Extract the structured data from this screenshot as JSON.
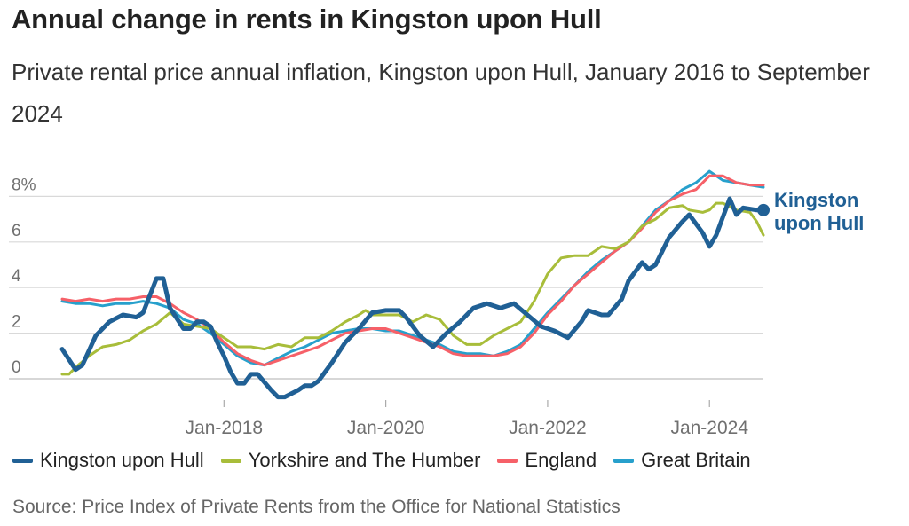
{
  "title": "Annual change in rents in Kingston upon Hull",
  "subtitle": "Private rental price annual inflation, Kingston upon Hull, January 2016 to September 2024",
  "source": "Source: Price Index of Private Rents from the Office for National Statistics",
  "colors": {
    "kingston": "#206095",
    "yorkshire": "#a8bd3a",
    "england": "#f66068",
    "gb": "#27a0cc",
    "grid": "#d9d9d9",
    "axis_text": "#707070"
  },
  "legend": [
    {
      "name": "Kingston upon Hull",
      "color": "#206095"
    },
    {
      "name": "Yorkshire and The Humber",
      "color": "#a8bd3a"
    },
    {
      "name": "England",
      "color": "#f66068"
    },
    {
      "name": "Great Britain",
      "color": "#27a0cc"
    }
  ],
  "chart_data": {
    "type": "line",
    "title": "Annual change in rents in Kingston upon Hull",
    "subtitle": "Private rental price annual inflation, Kingston upon Hull, January 2016 to September 2024",
    "xlabel": "",
    "ylabel": "",
    "x_range": [
      "2016-01",
      "2024-09"
    ],
    "ylim": [
      -1.5,
      9
    ],
    "y_ticks": [
      0,
      2,
      4,
      6,
      8
    ],
    "y_tick_labels": [
      "0",
      "2",
      "4",
      "6",
      "8%"
    ],
    "x_ticks": [
      "2018-01",
      "2020-01",
      "2022-01",
      "2024-01"
    ],
    "x_tick_labels": [
      "Jan-2018",
      "Jan-2020",
      "Jan-2022",
      "Jan-2024"
    ],
    "grid": "horizontal",
    "end_label": "Kingston upon Hull",
    "series": [
      {
        "name": "Kingston upon Hull",
        "color": "#206095",
        "width": 5,
        "points": [
          [
            "2016-01",
            1.3
          ],
          [
            "2016-03",
            0.4
          ],
          [
            "2016-04",
            0.6
          ],
          [
            "2016-06",
            1.9
          ],
          [
            "2016-08",
            2.5
          ],
          [
            "2016-10",
            2.8
          ],
          [
            "2016-12",
            2.7
          ],
          [
            "2017-01",
            2.9
          ],
          [
            "2017-03",
            4.4
          ],
          [
            "2017-04",
            4.4
          ],
          [
            "2017-05",
            3.1
          ],
          [
            "2017-07",
            2.2
          ],
          [
            "2017-08",
            2.2
          ],
          [
            "2017-09",
            2.5
          ],
          [
            "2017-10",
            2.5
          ],
          [
            "2017-11",
            2.3
          ],
          [
            "2017-12",
            1.6
          ],
          [
            "2018-01",
            1.0
          ],
          [
            "2018-02",
            0.3
          ],
          [
            "2018-03",
            -0.2
          ],
          [
            "2018-04",
            -0.2
          ],
          [
            "2018-05",
            0.2
          ],
          [
            "2018-06",
            0.2
          ],
          [
            "2018-08",
            -0.5
          ],
          [
            "2018-09",
            -0.8
          ],
          [
            "2018-10",
            -0.8
          ],
          [
            "2018-12",
            -0.5
          ],
          [
            "2019-01",
            -0.3
          ],
          [
            "2019-02",
            -0.3
          ],
          [
            "2019-03",
            -0.1
          ],
          [
            "2019-05",
            0.7
          ],
          [
            "2019-07",
            1.6
          ],
          [
            "2019-09",
            2.2
          ],
          [
            "2019-11",
            2.9
          ],
          [
            "2020-01",
            3.0
          ],
          [
            "2020-03",
            3.0
          ],
          [
            "2020-04",
            2.7
          ],
          [
            "2020-06",
            1.9
          ],
          [
            "2020-08",
            1.4
          ],
          [
            "2020-10",
            2.0
          ],
          [
            "2020-12",
            2.5
          ],
          [
            "2021-02",
            3.1
          ],
          [
            "2021-04",
            3.3
          ],
          [
            "2021-06",
            3.1
          ],
          [
            "2021-08",
            3.3
          ],
          [
            "2021-10",
            2.8
          ],
          [
            "2021-12",
            2.3
          ],
          [
            "2022-02",
            2.1
          ],
          [
            "2022-04",
            1.8
          ],
          [
            "2022-06",
            2.5
          ],
          [
            "2022-07",
            3.0
          ],
          [
            "2022-09",
            2.8
          ],
          [
            "2022-10",
            2.8
          ],
          [
            "2022-12",
            3.5
          ],
          [
            "2023-01",
            4.3
          ],
          [
            "2023-03",
            5.1
          ],
          [
            "2023-04",
            4.8
          ],
          [
            "2023-05",
            5.0
          ],
          [
            "2023-07",
            6.2
          ],
          [
            "2023-09",
            6.9
          ],
          [
            "2023-10",
            7.2
          ],
          [
            "2023-12",
            6.4
          ],
          [
            "2024-01",
            5.8
          ],
          [
            "2024-02",
            6.3
          ],
          [
            "2024-04",
            7.9
          ],
          [
            "2024-05",
            7.2
          ],
          [
            "2024-06",
            7.5
          ],
          [
            "2024-08",
            7.4
          ],
          [
            "2024-09",
            7.4
          ]
        ]
      },
      {
        "name": "Yorkshire and The Humber",
        "color": "#a8bd3a",
        "width": 3,
        "points": [
          [
            "2016-01",
            0.2
          ],
          [
            "2016-02",
            0.2
          ],
          [
            "2016-03",
            0.5
          ],
          [
            "2016-05",
            1.0
          ],
          [
            "2016-07",
            1.4
          ],
          [
            "2016-09",
            1.5
          ],
          [
            "2016-11",
            1.7
          ],
          [
            "2017-01",
            2.1
          ],
          [
            "2017-03",
            2.4
          ],
          [
            "2017-05",
            2.9
          ],
          [
            "2017-07",
            2.4
          ],
          [
            "2017-09",
            2.3
          ],
          [
            "2017-11",
            2.2
          ],
          [
            "2018-01",
            1.8
          ],
          [
            "2018-03",
            1.4
          ],
          [
            "2018-05",
            1.4
          ],
          [
            "2018-07",
            1.3
          ],
          [
            "2018-09",
            1.5
          ],
          [
            "2018-11",
            1.4
          ],
          [
            "2019-01",
            1.8
          ],
          [
            "2019-03",
            1.8
          ],
          [
            "2019-05",
            2.1
          ],
          [
            "2019-07",
            2.5
          ],
          [
            "2019-09",
            2.8
          ],
          [
            "2019-10",
            3.0
          ],
          [
            "2019-11",
            2.8
          ],
          [
            "2020-01",
            2.8
          ],
          [
            "2020-03",
            2.8
          ],
          [
            "2020-05",
            2.5
          ],
          [
            "2020-07",
            2.8
          ],
          [
            "2020-09",
            2.6
          ],
          [
            "2020-11",
            1.9
          ],
          [
            "2021-01",
            1.5
          ],
          [
            "2021-03",
            1.5
          ],
          [
            "2021-05",
            1.9
          ],
          [
            "2021-07",
            2.2
          ],
          [
            "2021-09",
            2.5
          ],
          [
            "2021-11",
            3.4
          ],
          [
            "2022-01",
            4.6
          ],
          [
            "2022-03",
            5.3
          ],
          [
            "2022-05",
            5.4
          ],
          [
            "2022-07",
            5.4
          ],
          [
            "2022-09",
            5.8
          ],
          [
            "2022-11",
            5.7
          ],
          [
            "2023-01",
            6.0
          ],
          [
            "2023-03",
            6.7
          ],
          [
            "2023-05",
            7.0
          ],
          [
            "2023-07",
            7.5
          ],
          [
            "2023-09",
            7.6
          ],
          [
            "2023-10",
            7.4
          ],
          [
            "2023-12",
            7.3
          ],
          [
            "2024-01",
            7.4
          ],
          [
            "2024-02",
            7.7
          ],
          [
            "2024-03",
            7.7
          ],
          [
            "2024-05",
            7.4
          ],
          [
            "2024-07",
            7.3
          ],
          [
            "2024-08",
            6.9
          ],
          [
            "2024-09",
            6.3
          ]
        ]
      },
      {
        "name": "England",
        "color": "#f66068",
        "width": 3,
        "points": [
          [
            "2016-01",
            3.5
          ],
          [
            "2016-03",
            3.4
          ],
          [
            "2016-05",
            3.5
          ],
          [
            "2016-07",
            3.4
          ],
          [
            "2016-09",
            3.5
          ],
          [
            "2016-11",
            3.5
          ],
          [
            "2017-01",
            3.6
          ],
          [
            "2017-03",
            3.6
          ],
          [
            "2017-05",
            3.3
          ],
          [
            "2017-07",
            2.9
          ],
          [
            "2017-09",
            2.6
          ],
          [
            "2017-11",
            2.2
          ],
          [
            "2018-01",
            1.6
          ],
          [
            "2018-03",
            1.1
          ],
          [
            "2018-05",
            0.8
          ],
          [
            "2018-07",
            0.6
          ],
          [
            "2018-09",
            0.8
          ],
          [
            "2018-11",
            1.0
          ],
          [
            "2019-01",
            1.2
          ],
          [
            "2019-03",
            1.4
          ],
          [
            "2019-05",
            1.7
          ],
          [
            "2019-07",
            2.0
          ],
          [
            "2019-09",
            2.1
          ],
          [
            "2019-11",
            2.2
          ],
          [
            "2020-01",
            2.2
          ],
          [
            "2020-03",
            2.0
          ],
          [
            "2020-05",
            1.8
          ],
          [
            "2020-07",
            1.6
          ],
          [
            "2020-09",
            1.4
          ],
          [
            "2020-11",
            1.1
          ],
          [
            "2021-01",
            1.0
          ],
          [
            "2021-03",
            1.0
          ],
          [
            "2021-05",
            1.0
          ],
          [
            "2021-07",
            1.1
          ],
          [
            "2021-09",
            1.4
          ],
          [
            "2021-11",
            2.0
          ],
          [
            "2022-01",
            2.8
          ],
          [
            "2022-03",
            3.4
          ],
          [
            "2022-05",
            4.1
          ],
          [
            "2022-07",
            4.6
          ],
          [
            "2022-09",
            5.1
          ],
          [
            "2022-11",
            5.6
          ],
          [
            "2023-01",
            6.0
          ],
          [
            "2023-03",
            6.6
          ],
          [
            "2023-05",
            7.3
          ],
          [
            "2023-07",
            7.8
          ],
          [
            "2023-09",
            8.1
          ],
          [
            "2023-11",
            8.3
          ],
          [
            "2024-01",
            8.9
          ],
          [
            "2024-03",
            8.9
          ],
          [
            "2024-05",
            8.6
          ],
          [
            "2024-07",
            8.5
          ],
          [
            "2024-09",
            8.5
          ]
        ]
      },
      {
        "name": "Great Britain",
        "color": "#27a0cc",
        "width": 3,
        "points": [
          [
            "2016-01",
            3.4
          ],
          [
            "2016-03",
            3.3
          ],
          [
            "2016-05",
            3.3
          ],
          [
            "2016-07",
            3.2
          ],
          [
            "2016-09",
            3.3
          ],
          [
            "2016-11",
            3.3
          ],
          [
            "2017-01",
            3.4
          ],
          [
            "2017-03",
            3.3
          ],
          [
            "2017-05",
            3.1
          ],
          [
            "2017-07",
            2.6
          ],
          [
            "2017-09",
            2.4
          ],
          [
            "2017-11",
            2.0
          ],
          [
            "2018-01",
            1.5
          ],
          [
            "2018-03",
            1.0
          ],
          [
            "2018-05",
            0.7
          ],
          [
            "2018-07",
            0.6
          ],
          [
            "2018-09",
            0.9
          ],
          [
            "2018-11",
            1.2
          ],
          [
            "2019-01",
            1.4
          ],
          [
            "2019-03",
            1.7
          ],
          [
            "2019-05",
            2.0
          ],
          [
            "2019-07",
            2.1
          ],
          [
            "2019-09",
            2.2
          ],
          [
            "2019-11",
            2.2
          ],
          [
            "2020-01",
            2.1
          ],
          [
            "2020-03",
            2.1
          ],
          [
            "2020-05",
            1.9
          ],
          [
            "2020-07",
            1.7
          ],
          [
            "2020-09",
            1.5
          ],
          [
            "2020-11",
            1.2
          ],
          [
            "2021-01",
            1.1
          ],
          [
            "2021-03",
            1.1
          ],
          [
            "2021-05",
            1.0
          ],
          [
            "2021-07",
            1.2
          ],
          [
            "2021-09",
            1.5
          ],
          [
            "2021-11",
            2.2
          ],
          [
            "2022-01",
            2.9
          ],
          [
            "2022-03",
            3.5
          ],
          [
            "2022-05",
            4.1
          ],
          [
            "2022-07",
            4.7
          ],
          [
            "2022-09",
            5.2
          ],
          [
            "2022-11",
            5.6
          ],
          [
            "2023-01",
            6.0
          ],
          [
            "2023-03",
            6.7
          ],
          [
            "2023-05",
            7.4
          ],
          [
            "2023-07",
            7.8
          ],
          [
            "2023-09",
            8.3
          ],
          [
            "2023-11",
            8.6
          ],
          [
            "2024-01",
            9.1
          ],
          [
            "2024-03",
            8.7
          ],
          [
            "2024-05",
            8.6
          ],
          [
            "2024-07",
            8.5
          ],
          [
            "2024-09",
            8.4
          ]
        ]
      }
    ]
  }
}
